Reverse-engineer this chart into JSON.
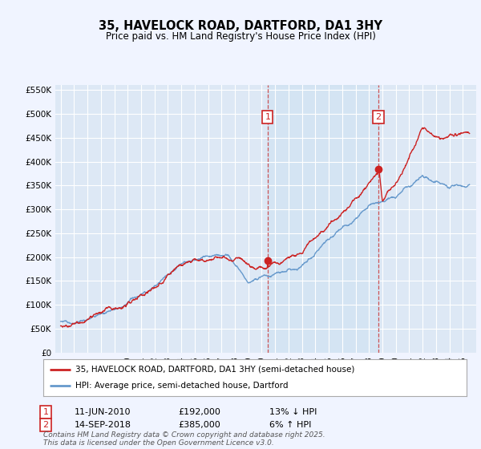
{
  "title": "35, HAVELOCK ROAD, DARTFORD, DA1 3HY",
  "subtitle": "Price paid vs. HM Land Registry's House Price Index (HPI)",
  "background_color": "#f0f4ff",
  "plot_bg_color": "#dde8f5",
  "shaded_region_color": "#d0e4f7",
  "ylim": [
    0,
    560000
  ],
  "yticks": [
    0,
    50000,
    100000,
    150000,
    200000,
    250000,
    300000,
    350000,
    400000,
    450000,
    500000,
    550000
  ],
  "ytick_labels": [
    "£0",
    "£50K",
    "£100K",
    "£150K",
    "£200K",
    "£250K",
    "£300K",
    "£350K",
    "£400K",
    "£450K",
    "£500K",
    "£550K"
  ],
  "sale1_date_num": 2010.44,
  "sale1_price": 192000,
  "sale1_label": "1",
  "sale1_pct": "13% ↓ HPI",
  "sale1_date_str": "11-JUN-2010",
  "sale2_date_num": 2018.71,
  "sale2_price": 385000,
  "sale2_label": "2",
  "sale2_pct": "6% ↑ HPI",
  "sale2_date_str": "14-SEP-2018",
  "legend_line1": "35, HAVELOCK ROAD, DARTFORD, DA1 3HY (semi-detached house)",
  "legend_line2": "HPI: Average price, semi-detached house, Dartford",
  "footer": "Contains HM Land Registry data © Crown copyright and database right 2025.\nThis data is licensed under the Open Government Licence v3.0.",
  "hpi_color": "#6699cc",
  "price_color": "#cc2222",
  "vline_color": "#cc4444",
  "annotation_box_color": "#cc2222",
  "xmin": 1995,
  "xmax": 2026
}
